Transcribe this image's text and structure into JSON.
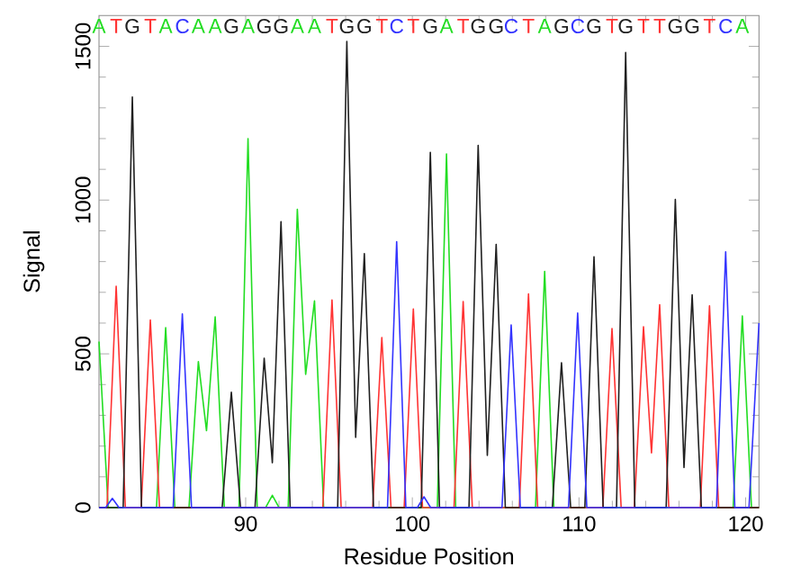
{
  "chart_data": {
    "type": "line",
    "xlabel": "Residue Position",
    "ylabel": "Signal",
    "xlim": [
      81.2,
      120.8
    ],
    "ylim": [
      0,
      1600
    ],
    "xticks": [
      90,
      100,
      110,
      120
    ],
    "yticks": [
      0,
      500,
      1000,
      1500
    ],
    "series": [
      {
        "color": "#22dd22",
        "x": [
          81.2,
          81.75,
          84.65,
          85.2,
          85.75,
          86.6,
          87.16,
          87.65,
          88.17,
          88.72,
          89.6,
          90.14,
          90.69,
          91.2,
          91.6,
          92.0,
          92.55,
          93.1,
          93.6,
          94.13,
          94.68,
          101.5,
          102.05,
          102.6,
          107.39,
          107.94,
          108.49,
          119.25,
          119.8,
          120.35,
          120.8
        ],
        "values": [
          540,
          0,
          0,
          585,
          0,
          0,
          475,
          250,
          620,
          0,
          0,
          1200,
          0,
          0,
          40,
          0,
          0,
          970,
          433,
          672,
          0,
          0,
          1150,
          0,
          0,
          768,
          0,
          0,
          623,
          0,
          0
        ]
      },
      {
        "color": "#ff3333",
        "x": [
          81.2,
          81.68,
          82.23,
          82.78,
          83.73,
          84.28,
          84.83,
          94.63,
          95.18,
          95.73,
          97.62,
          98.17,
          98.72,
          99.51,
          100.06,
          100.61,
          102.5,
          103.05,
          103.6,
          106.42,
          106.97,
          107.52,
          111.43,
          111.98,
          112.53,
          113.32,
          113.87,
          114.35,
          114.84,
          115.39,
          117.28,
          117.83,
          118.38,
          120.8
        ],
        "values": [
          0,
          0,
          720,
          0,
          0,
          610,
          0,
          0,
          675,
          0,
          0,
          553,
          0,
          0,
          646,
          0,
          0,
          670,
          0,
          0,
          695,
          0,
          0,
          582,
          0,
          0,
          588,
          178,
          660,
          0,
          0,
          656,
          0,
          0
        ]
      },
      {
        "color": "#202020",
        "x": [
          81.2,
          82.65,
          83.2,
          83.75,
          88.59,
          89.14,
          89.69,
          90.56,
          91.11,
          91.6,
          92.12,
          92.67,
          95.52,
          96.07,
          96.6,
          97.12,
          97.67,
          100.53,
          101.08,
          101.63,
          103.4,
          103.95,
          104.5,
          105.03,
          105.58,
          108.4,
          108.95,
          109.5,
          110.35,
          110.9,
          111.45,
          112.25,
          112.8,
          113.35,
          115.23,
          115.78,
          116.3,
          116.79,
          117.34,
          120.8
        ],
        "values": [
          0,
          0,
          1335,
          0,
          0,
          375,
          0,
          0,
          486,
          146,
          930,
          0,
          0,
          1516,
          228,
          826,
          0,
          0,
          1155,
          0,
          0,
          1178,
          170,
          856,
          0,
          0,
          471,
          0,
          0,
          816,
          0,
          0,
          1480,
          0,
          0,
          1002,
          130,
          692,
          0,
          0
        ]
      },
      {
        "color": "#3333ff",
        "x": [
          81.2,
          81.6,
          82.0,
          82.4,
          85.65,
          86.2,
          86.75,
          98.51,
          99.06,
          99.61,
          100.3,
          100.7,
          101.1,
          105.38,
          105.93,
          106.48,
          109.37,
          109.92,
          110.47,
          118.25,
          118.8,
          119.35,
          120.2,
          120.8
        ],
        "values": [
          0,
          0,
          30,
          0,
          0,
          630,
          0,
          0,
          865,
          0,
          0,
          35,
          0,
          0,
          594,
          0,
          0,
          633,
          0,
          0,
          832,
          0,
          0,
          600
        ]
      }
    ],
    "annotations": [
      "A",
      "T",
      "G",
      "T",
      "A",
      "C",
      "A",
      "A",
      "G",
      "A",
      "G",
      "G",
      "A",
      "A",
      "T",
      "G",
      "G",
      "T",
      "C",
      "T",
      "G",
      "A",
      "T",
      "G",
      "G",
      "C",
      "T",
      "A",
      "G",
      "C",
      "G",
      "T",
      "G",
      "T",
      "T",
      "G",
      "G",
      "T",
      "C",
      "A"
    ]
  }
}
